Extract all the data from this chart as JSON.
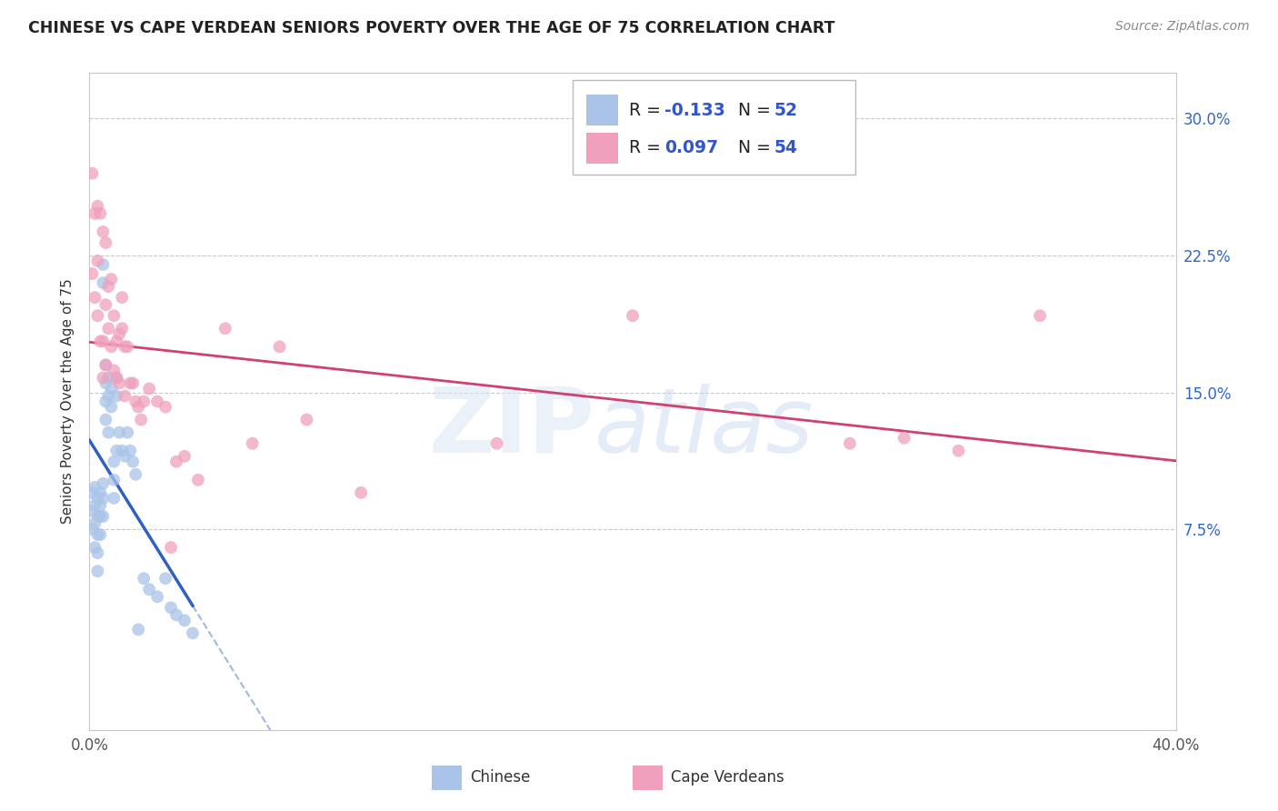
{
  "title": "CHINESE VS CAPE VERDEAN SENIORS POVERTY OVER THE AGE OF 75 CORRELATION CHART",
  "source": "Source: ZipAtlas.com",
  "ylabel": "Seniors Poverty Over the Age of 75",
  "yticks": [
    0.075,
    0.15,
    0.225,
    0.3
  ],
  "ytick_labels": [
    "7.5%",
    "15.0%",
    "22.5%",
    "30.0%"
  ],
  "xtick_labels": [
    "0.0%",
    "40.0%"
  ],
  "legend_label_chinese": "Chinese",
  "legend_label_cape": "Cape Verdeans",
  "chinese_color": "#aac4e8",
  "cape_color": "#f0a0bc",
  "chinese_line_color": "#3060c0",
  "cape_line_color": "#d04070",
  "background_color": "#ffffff",
  "grid_color": "#c8c8c8",
  "xlim": [
    0.0,
    0.4
  ],
  "ylim": [
    -0.035,
    0.325
  ],
  "chinese_x": [
    0.001,
    0.001,
    0.001,
    0.002,
    0.002,
    0.002,
    0.002,
    0.003,
    0.003,
    0.003,
    0.003,
    0.003,
    0.004,
    0.004,
    0.004,
    0.004,
    0.005,
    0.005,
    0.005,
    0.005,
    0.005,
    0.006,
    0.006,
    0.006,
    0.006,
    0.007,
    0.007,
    0.007,
    0.008,
    0.008,
    0.009,
    0.009,
    0.009,
    0.01,
    0.01,
    0.01,
    0.011,
    0.012,
    0.013,
    0.014,
    0.015,
    0.016,
    0.017,
    0.018,
    0.02,
    0.022,
    0.025,
    0.028,
    0.03,
    0.032,
    0.035,
    0.038
  ],
  "chinese_y": [
    0.095,
    0.085,
    0.075,
    0.098,
    0.088,
    0.078,
    0.065,
    0.092,
    0.082,
    0.072,
    0.062,
    0.052,
    0.095,
    0.088,
    0.082,
    0.072,
    0.22,
    0.21,
    0.1,
    0.092,
    0.082,
    0.165,
    0.155,
    0.145,
    0.135,
    0.158,
    0.148,
    0.128,
    0.152,
    0.142,
    0.112,
    0.102,
    0.092,
    0.158,
    0.148,
    0.118,
    0.128,
    0.118,
    0.115,
    0.128,
    0.118,
    0.112,
    0.105,
    0.02,
    0.048,
    0.042,
    0.038,
    0.048,
    0.032,
    0.028,
    0.025,
    0.018
  ],
  "cape_x": [
    0.001,
    0.001,
    0.002,
    0.002,
    0.003,
    0.003,
    0.003,
    0.004,
    0.004,
    0.005,
    0.005,
    0.005,
    0.006,
    0.006,
    0.006,
    0.007,
    0.007,
    0.008,
    0.008,
    0.009,
    0.009,
    0.01,
    0.01,
    0.011,
    0.011,
    0.012,
    0.012,
    0.013,
    0.013,
    0.014,
    0.015,
    0.016,
    0.017,
    0.018,
    0.019,
    0.02,
    0.022,
    0.025,
    0.028,
    0.03,
    0.032,
    0.035,
    0.04,
    0.05,
    0.06,
    0.07,
    0.08,
    0.1,
    0.15,
    0.2,
    0.28,
    0.3,
    0.32,
    0.35
  ],
  "cape_y": [
    0.27,
    0.215,
    0.248,
    0.202,
    0.252,
    0.222,
    0.192,
    0.248,
    0.178,
    0.238,
    0.178,
    0.158,
    0.232,
    0.198,
    0.165,
    0.208,
    0.185,
    0.212,
    0.175,
    0.192,
    0.162,
    0.178,
    0.158,
    0.182,
    0.155,
    0.202,
    0.185,
    0.175,
    0.148,
    0.175,
    0.155,
    0.155,
    0.145,
    0.142,
    0.135,
    0.145,
    0.152,
    0.145,
    0.142,
    0.065,
    0.112,
    0.115,
    0.102,
    0.185,
    0.122,
    0.175,
    0.135,
    0.095,
    0.122,
    0.192,
    0.122,
    0.125,
    0.118,
    0.192
  ]
}
